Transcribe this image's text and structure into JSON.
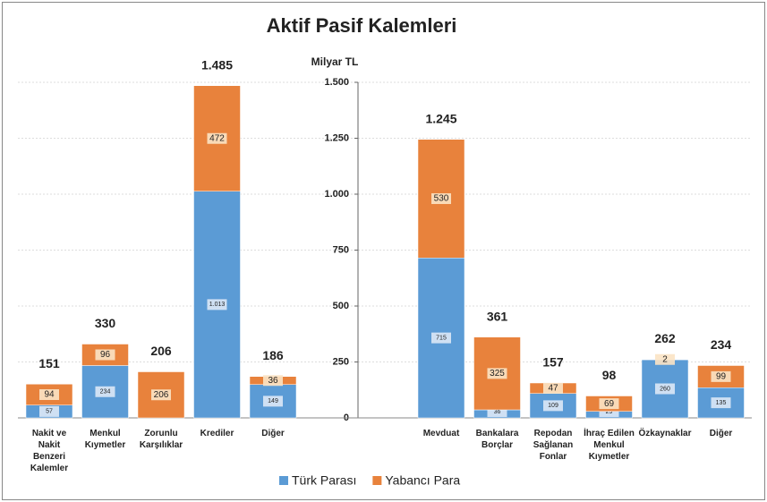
{
  "chart_data": {
    "type": "stacked_bar",
    "title": "Aktif Pasif Kalemleri",
    "y_label": "Milyar TL",
    "categories": [
      "Nakit ve Nakit Benzeri Kalemler",
      "Menkul Kıymetler",
      "Zorunlu Karşılıklar",
      "Krediler",
      "Diğer",
      "Mevduat",
      "Bankalara Borçlar",
      "Repodan Sağlanan Fonlar",
      "İhraç Edilen Menkul Kıymetler",
      "Özkaynaklar",
      "Diğer"
    ],
    "series": [
      {
        "name": "Türk Parası",
        "color": "#5b9bd5",
        "values": [
          57,
          234,
          0,
          1013,
          149,
          715,
          36,
          109,
          29,
          260,
          135
        ],
        "value_labels": [
          "57",
          "234",
          "0",
          "1.013",
          "149",
          "715",
          "36",
          "109",
          "29",
          "260",
          "135"
        ]
      },
      {
        "name": "Yabancı Para",
        "color": "#e8823c",
        "values": [
          94,
          96,
          206,
          472,
          36,
          530,
          325,
          47,
          69,
          2,
          99
        ]
      }
    ],
    "totals": {
      "values": [
        151,
        330,
        206,
        1485,
        186,
        1245,
        361,
        157,
        98,
        262,
        234
      ],
      "value_labels": [
        "151",
        "330",
        "206",
        "1.485",
        "186",
        "1.245",
        "361",
        "157",
        "98",
        "262",
        "234"
      ]
    },
    "ylim": [
      0,
      1500
    ],
    "yticks": [
      0,
      250,
      500,
      750,
      {
        "value": 1000,
        "label": "1.000"
      },
      {
        "value": 1250,
        "label": "1.250"
      },
      {
        "value": 1500,
        "label": "1.500"
      }
    ],
    "grid": true,
    "legend": "bottom"
  }
}
